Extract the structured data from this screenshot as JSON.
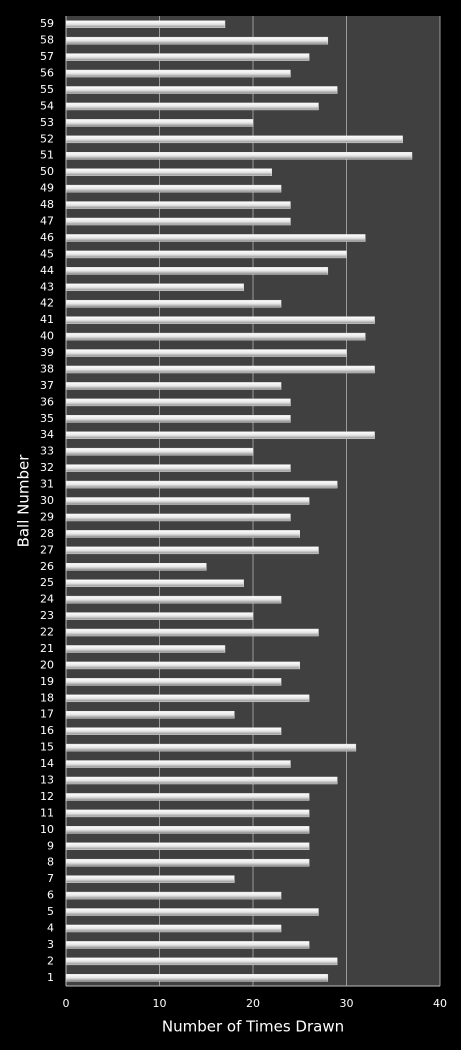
{
  "chart_data": {
    "type": "hbar",
    "categories": [
      "1",
      "2",
      "3",
      "4",
      "5",
      "6",
      "7",
      "8",
      "9",
      "10",
      "11",
      "12",
      "13",
      "14",
      "15",
      "16",
      "17",
      "18",
      "19",
      "20",
      "21",
      "22",
      "23",
      "24",
      "25",
      "26",
      "27",
      "28",
      "29",
      "30",
      "31",
      "32",
      "33",
      "34",
      "35",
      "36",
      "37",
      "38",
      "39",
      "40",
      "41",
      "42",
      "43",
      "44",
      "45",
      "46",
      "47",
      "48",
      "49",
      "50",
      "51",
      "52",
      "53",
      "54",
      "55",
      "56",
      "57",
      "58",
      "59"
    ],
    "values": [
      28,
      29,
      26,
      23,
      27,
      23,
      18,
      26,
      26,
      26,
      26,
      26,
      29,
      24,
      31,
      23,
      18,
      26,
      23,
      25,
      17,
      27,
      20,
      23,
      19,
      15,
      27,
      25,
      24,
      26,
      29,
      24,
      20,
      33,
      24,
      24,
      23,
      33,
      30,
      32,
      33,
      23,
      19,
      28,
      30,
      32,
      24,
      24,
      23,
      22,
      37,
      36,
      20,
      27,
      29,
      24,
      26,
      28,
      17
    ],
    "color": "#e6e6e6",
    "xlabel": "Number of Times Drawn",
    "ylabel": "Ball Number",
    "xlim": [
      0,
      40
    ],
    "xticks": [
      0,
      10,
      20,
      30,
      40
    ],
    "grid": true
  }
}
